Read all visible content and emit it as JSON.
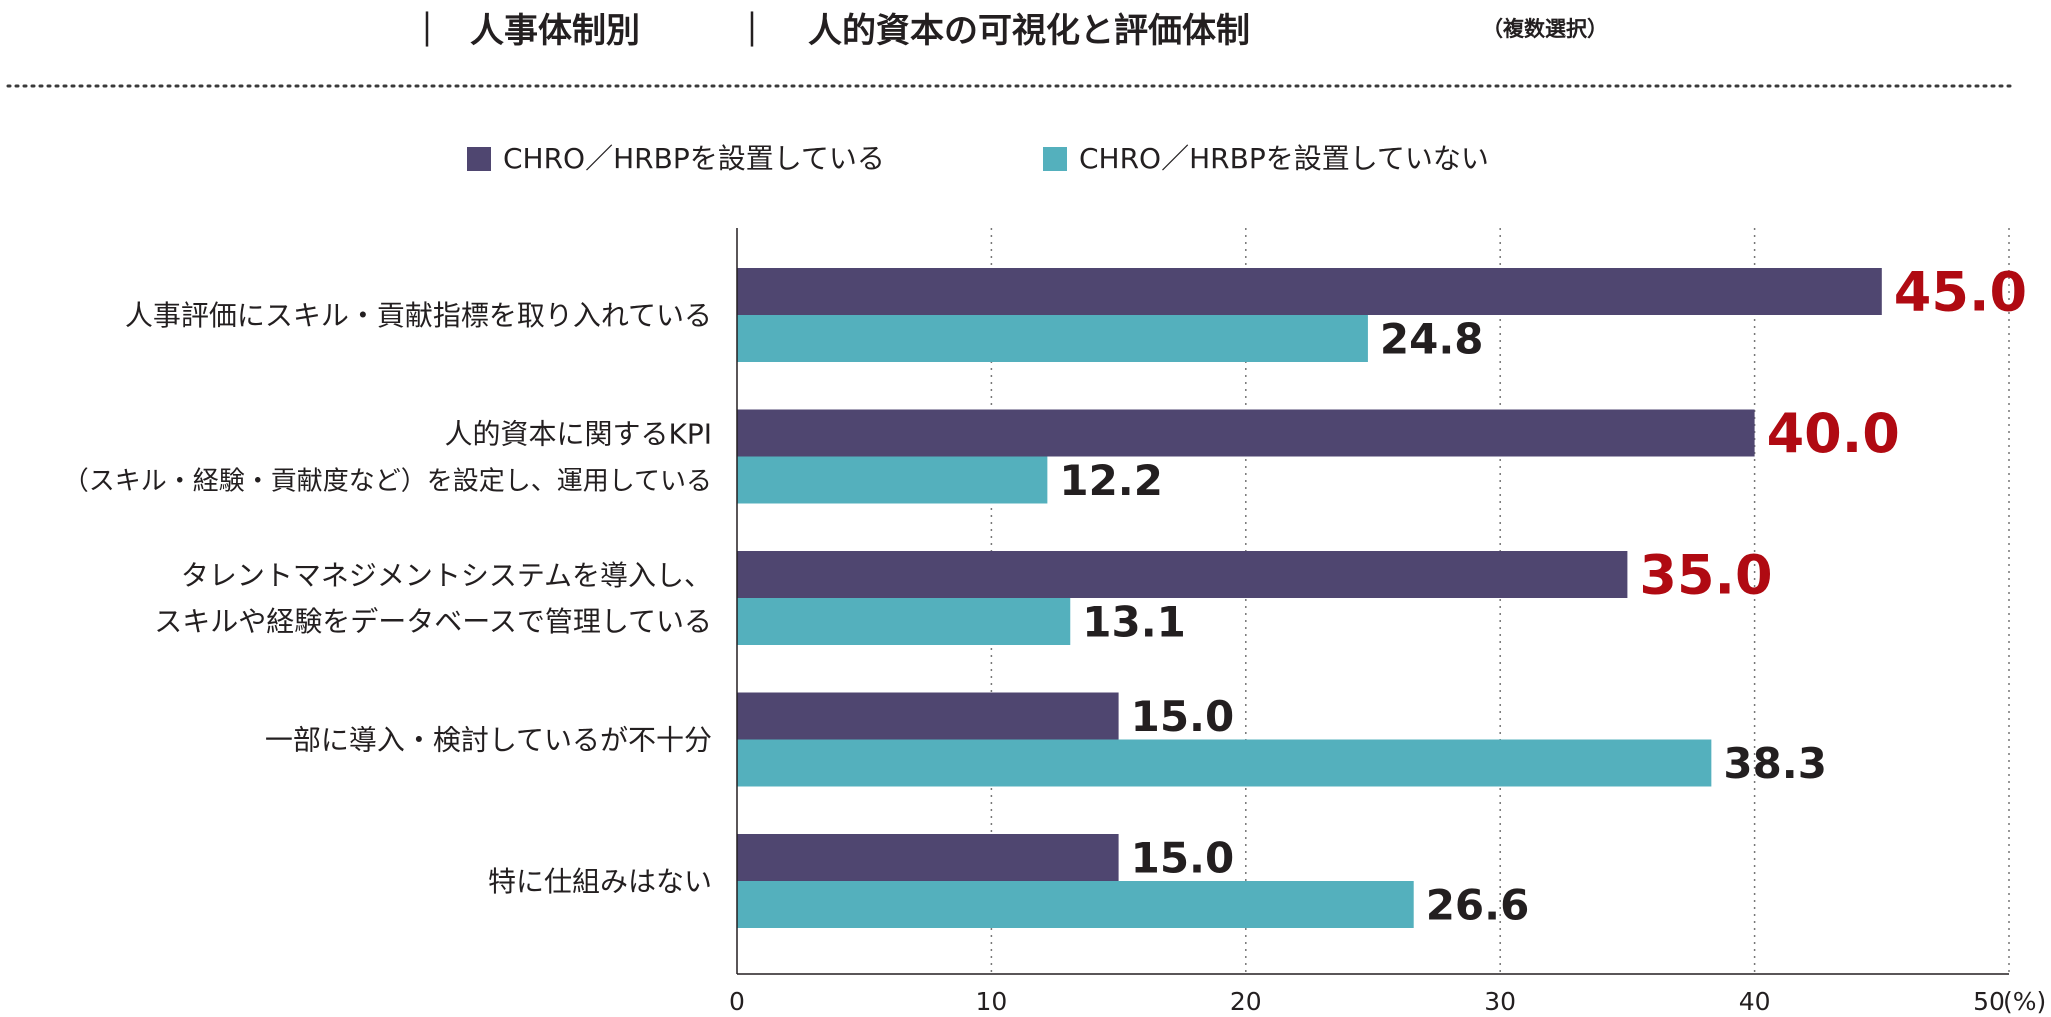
{
  "title": {
    "bar1": "｜",
    "main": "人事体制別",
    "bar2": "｜",
    "sub": "人的資本の可視化と評価体制",
    "note": "（複数選択）"
  },
  "colors": {
    "series_a": "#4f4670",
    "series_b": "#54b0bd",
    "highlight": "#b00a12",
    "text": "#231f20",
    "grid": "#777777"
  },
  "chart_data": {
    "type": "bar",
    "orientation": "horizontal",
    "categories": [
      [
        "人事評価にスキル・貢献指標を取り入れている"
      ],
      [
        "人的資本に関するKPI",
        "（スキル・経験・貢献度など）を設定し、運用している"
      ],
      [
        "タレントマネジメントシステムを導入し、",
        "スキルや経験をデータベースで管理している"
      ],
      [
        "一部に導入・検討しているが不十分"
      ],
      [
        "特に仕組みはない"
      ]
    ],
    "series": [
      {
        "name": "CHRO／HRBPを設置している",
        "values": [
          45.0,
          40.0,
          35.0,
          15.0,
          15.0
        ],
        "labels": [
          "45.0",
          "40.0",
          "35.0",
          "15.0",
          "15.0"
        ],
        "highlight": [
          true,
          true,
          true,
          false,
          false
        ]
      },
      {
        "name": "CHRO／HRBPを設置していない",
        "values": [
          24.8,
          12.2,
          13.1,
          38.3,
          26.6
        ],
        "labels": [
          "24.8",
          "12.2",
          "13.1",
          "38.3",
          "26.6"
        ],
        "highlight": [
          false,
          false,
          false,
          false,
          false
        ]
      }
    ],
    "xlim": [
      0,
      50
    ],
    "xticks": [
      "0",
      "10",
      "20",
      "30",
      "40",
      "50"
    ],
    "xunit": "(%)",
    "grid": "vertical dotted",
    "legend": "top-center"
  }
}
